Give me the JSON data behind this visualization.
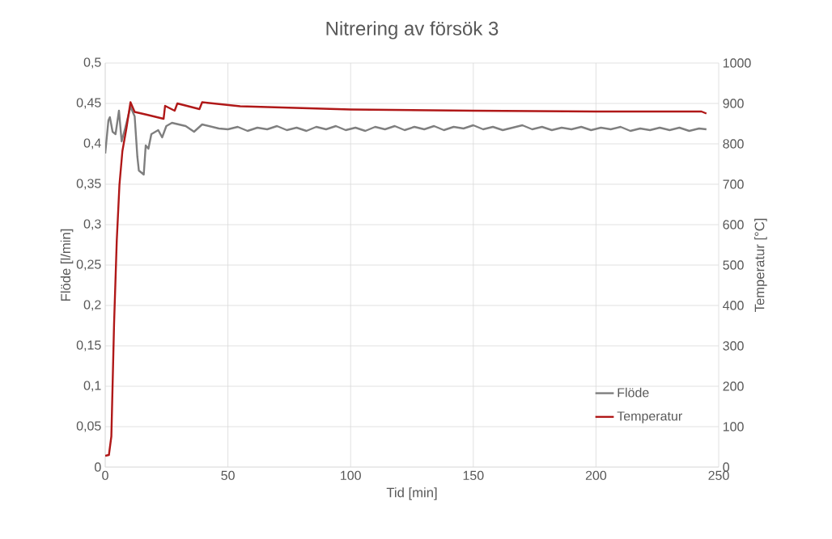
{
  "chart_data": {
    "type": "line",
    "title": "Nitrering av försök 3",
    "xlabel": "Tid [min]",
    "ylabel": "Flöde [l/min]",
    "y2label": "Temperatur [°C]",
    "xlim": [
      0,
      250
    ],
    "xticks": [
      0,
      50,
      100,
      150,
      200,
      250
    ],
    "ylim": [
      0,
      0.5
    ],
    "yticks": [
      0,
      {
        "value": 0.05,
        "label": "0,05"
      },
      {
        "value": 0.1,
        "label": "0,1"
      },
      {
        "value": 0.15,
        "label": "0,15"
      },
      {
        "value": 0.2,
        "label": "0,2"
      },
      {
        "value": 0.25,
        "label": "0,25"
      },
      {
        "value": 0.3,
        "label": "0,3"
      },
      {
        "value": 0.35,
        "label": "0,35"
      },
      {
        "value": 0.4,
        "label": "0,4"
      },
      {
        "value": 0.45,
        "label": "0,45"
      },
      {
        "value": 0.5,
        "label": "0,5"
      }
    ],
    "y2lim": [
      0,
      1000
    ],
    "y2ticks": [
      0,
      100,
      200,
      300,
      400,
      500,
      600,
      700,
      800,
      900,
      1000
    ],
    "grid": true,
    "legend": "bottom right",
    "series": [
      {
        "name": "Flöde",
        "color": "#7f7f7f",
        "x": [
          0,
          1.3,
          1.9,
          3.0,
          4.2,
          5.6,
          6.7,
          8.1,
          10.3,
          12,
          13.1,
          13.7,
          15.7,
          16.5,
          17.6,
          18.8,
          21.6,
          23.2,
          24.9,
          27.2,
          32.8,
          36.2,
          39.5,
          46.3,
          50,
          54,
          58,
          62,
          66,
          70,
          74,
          78,
          82,
          86,
          90,
          94,
          98,
          102,
          106,
          110,
          114,
          118,
          122,
          126,
          130,
          134,
          138,
          142,
          146,
          150,
          154,
          158,
          162,
          166,
          170,
          174,
          178,
          182,
          186,
          190,
          194,
          198,
          202,
          206,
          210,
          214,
          218,
          222,
          226,
          230,
          234,
          238,
          242,
          245
        ],
        "values": [
          0.388,
          0.429,
          0.433,
          0.415,
          0.412,
          0.441,
          0.403,
          0.419,
          0.446,
          0.434,
          0.384,
          0.367,
          0.362,
          0.398,
          0.394,
          0.412,
          0.417,
          0.408,
          0.422,
          0.426,
          0.422,
          0.415,
          0.424,
          0.419,
          0.418,
          0.421,
          0.416,
          0.42,
          0.418,
          0.422,
          0.417,
          0.42,
          0.416,
          0.421,
          0.418,
          0.422,
          0.417,
          0.42,
          0.416,
          0.421,
          0.418,
          0.422,
          0.417,
          0.421,
          0.418,
          0.422,
          0.417,
          0.421,
          0.419,
          0.423,
          0.418,
          0.421,
          0.417,
          0.42,
          0.423,
          0.418,
          0.421,
          0.417,
          0.42,
          0.418,
          0.421,
          0.417,
          0.42,
          0.418,
          0.421,
          0.416,
          0.419,
          0.417,
          0.42,
          0.417,
          0.42,
          0.416,
          0.419,
          0.418
        ]
      },
      {
        "name": "Temperatur",
        "color": "#b01818",
        "axis": "y2",
        "x": [
          0,
          1.5,
          2.5,
          3.6,
          4.7,
          5.8,
          7.0,
          8.6,
          10.3,
          12,
          17,
          23.8,
          24.4,
          28.3,
          29.4,
          38.4,
          39.5,
          55,
          100,
          150,
          200,
          243,
          245
        ],
        "values": [
          28,
          30,
          76,
          353,
          560,
          699,
          782,
          837,
          903,
          879,
          872,
          862,
          894,
          882,
          900,
          886,
          903,
          893,
          885,
          882,
          880,
          880,
          875
        ]
      }
    ]
  }
}
